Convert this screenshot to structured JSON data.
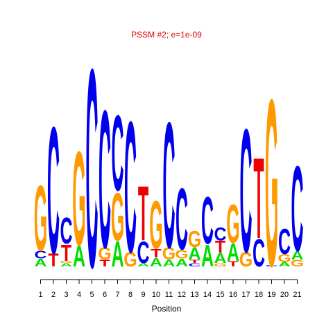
{
  "chart_data": {
    "type": "sequence-logo",
    "title": "PSSM #2; e=1e-09",
    "xlabel": "Position",
    "ylabel": "",
    "alphabet": [
      "A",
      "C",
      "G",
      "T"
    ],
    "colors": {
      "A": "#00dd00",
      "C": "#0000ee",
      "G": "#ff9900",
      "T": "#ee0000",
      "title": "#dd0000"
    },
    "ylim": [
      0,
      2
    ],
    "positions": [
      {
        "position": 1,
        "letters": [
          [
            "A",
            0.07
          ],
          [
            "C",
            0.07
          ],
          [
            "G",
            0.6
          ]
        ]
      },
      {
        "position": 2,
        "letters": [
          [
            "T",
            0.12
          ],
          [
            "C",
            1.16
          ]
        ]
      },
      {
        "position": 3,
        "letters": [
          [
            "A",
            0.03
          ],
          [
            "G",
            0.02
          ],
          [
            "T",
            0.15
          ],
          [
            "C",
            0.24
          ]
        ]
      },
      {
        "position": 4,
        "letters": [
          [
            "A",
            0.19
          ],
          [
            "G",
            0.86
          ]
        ]
      },
      {
        "position": 5,
        "letters": [
          [
            "C",
            1.82
          ]
        ]
      },
      {
        "position": 6,
        "letters": [
          [
            "T",
            0.06
          ],
          [
            "G",
            0.11
          ],
          [
            "C",
            1.26
          ]
        ]
      },
      {
        "position": 7,
        "letters": [
          [
            "A",
            0.23
          ],
          [
            "G",
            0.44
          ],
          [
            "C",
            0.69
          ]
        ]
      },
      {
        "position": 8,
        "letters": [
          [
            "G",
            0.13
          ],
          [
            "C",
            1.2
          ]
        ]
      },
      {
        "position": 9,
        "letters": [
          [
            "A",
            0.03
          ],
          [
            "C",
            0.2
          ],
          [
            "T",
            0.5
          ]
        ]
      },
      {
        "position": 10,
        "letters": [
          [
            "A",
            0.08
          ],
          [
            "T",
            0.08
          ],
          [
            "G",
            0.44
          ]
        ]
      },
      {
        "position": 11,
        "letters": [
          [
            "A",
            0.06
          ],
          [
            "G",
            0.11
          ],
          [
            "C",
            1.15
          ]
        ]
      },
      {
        "position": 12,
        "letters": [
          [
            "A",
            0.07
          ],
          [
            "G",
            0.08
          ],
          [
            "C",
            0.56
          ]
        ]
      },
      {
        "position": 13,
        "letters": [
          [
            "C",
            0.03
          ],
          [
            "T",
            0.03
          ],
          [
            "A",
            0.11
          ],
          [
            "G",
            0.15
          ]
        ]
      },
      {
        "position": 14,
        "letters": [
          [
            "A",
            0.2
          ],
          [
            "C",
            0.43
          ]
        ]
      },
      {
        "position": 15,
        "letters": [
          [
            "G",
            0.03
          ],
          [
            "A",
            0.09
          ],
          [
            "T",
            0.11
          ],
          [
            "C",
            0.12
          ]
        ]
      },
      {
        "position": 16,
        "letters": [
          [
            "T",
            0.05
          ],
          [
            "A",
            0.16
          ],
          [
            "G",
            0.35
          ]
        ]
      },
      {
        "position": 17,
        "letters": [
          [
            "G",
            0.13
          ],
          [
            "C",
            1.13
          ]
        ]
      },
      {
        "position": 18,
        "letters": [
          [
            "C",
            0.25
          ],
          [
            "T",
            0.74
          ]
        ]
      },
      {
        "position": 19,
        "letters": [
          [
            "C",
            0.01
          ],
          [
            "G",
            1.53
          ]
        ]
      },
      {
        "position": 20,
        "letters": [
          [
            "A",
            0.04
          ],
          [
            "G",
            0.07
          ],
          [
            "C",
            0.23
          ]
        ]
      },
      {
        "position": 21,
        "letters": [
          [
            "G",
            0.06
          ],
          [
            "A",
            0.08
          ],
          [
            "C",
            0.78
          ]
        ]
      }
    ]
  }
}
